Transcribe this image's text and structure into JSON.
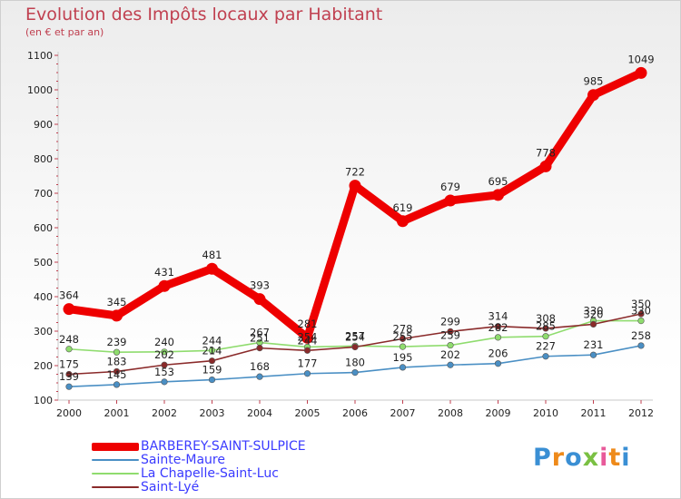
{
  "header": {
    "title": "Evolution des Impôts locaux par Habitant",
    "subtitle": "(en € et par an)"
  },
  "chart_data": {
    "type": "line",
    "title": "Evolution des Impôts locaux par Habitant",
    "subtitle": "(en € et par an)",
    "xlabel": "",
    "ylabel": "",
    "x": [
      "2000",
      "2001",
      "2002",
      "2003",
      "2004",
      "2005",
      "2006",
      "2007",
      "2008",
      "2009",
      "2010",
      "2011",
      "2012"
    ],
    "ylim": [
      100,
      1100
    ],
    "yticks": [
      100,
      200,
      300,
      400,
      500,
      600,
      700,
      800,
      900,
      1000,
      1100
    ],
    "grid": false,
    "legend_position": "bottom-left",
    "series": [
      {
        "name": "BARBEREY-SAINT-SULPICE",
        "color": "#ee0000",
        "values": [
          364,
          345,
          431,
          481,
          393,
          281,
          722,
          619,
          679,
          695,
          778,
          985,
          1049
        ]
      },
      {
        "name": "Sainte-Maure",
        "color": "#4a8fc4",
        "values": [
          139,
          145,
          153,
          159,
          168,
          177,
          180,
          195,
          202,
          206,
          227,
          231,
          258
        ]
      },
      {
        "name": "La Chapelle-Saint-Luc",
        "color": "#8fdc6e",
        "values": [
          248,
          239,
          240,
          244,
          267,
          254,
          257,
          255,
          259,
          282,
          285,
          330,
          330
        ]
      },
      {
        "name": "Saint-Lyé",
        "color": "#8a2a2a",
        "values": [
          175,
          183,
          202,
          214,
          251,
          244,
          254,
          278,
          299,
          314,
          308,
          320,
          350
        ]
      }
    ]
  },
  "logo": {
    "text": "Proxiti",
    "letter_colors": [
      "#3a8fd4",
      "#ee8a1a",
      "#3a8fd4",
      "#7ac043",
      "#e85a9a",
      "#ee8a1a",
      "#3a8fd4"
    ]
  }
}
